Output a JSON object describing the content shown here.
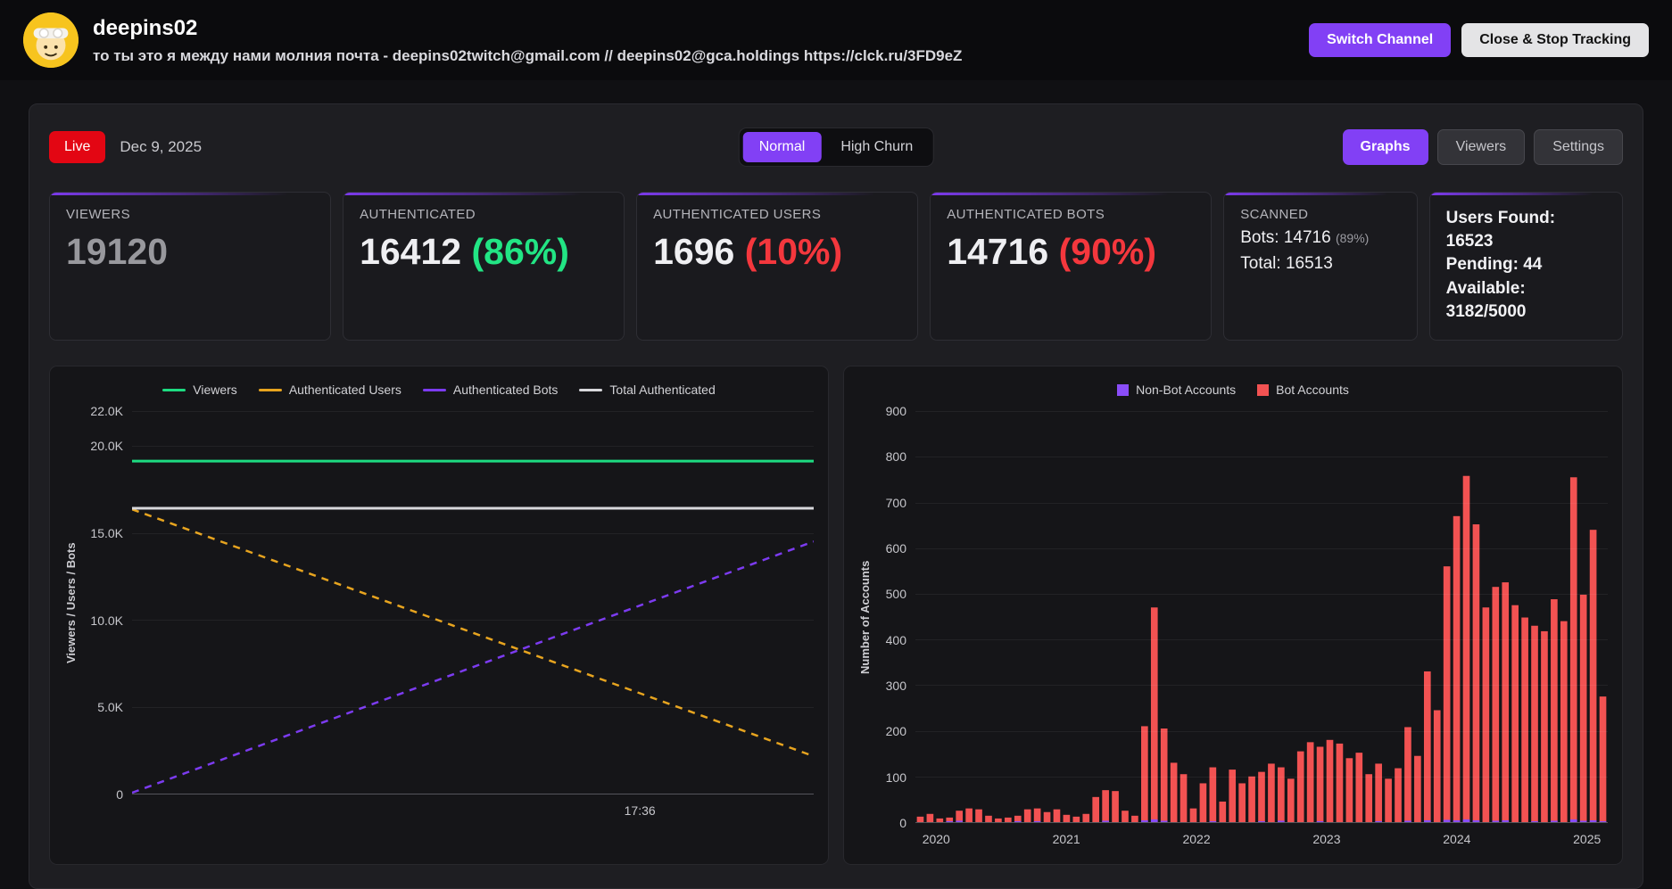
{
  "header": {
    "channel_name": "deepins02",
    "description": "то ты это я между нами молния почта - deepins02twitch@gmail.com // deepins02@gca.holdings https://clck.ru/3FD9eZ",
    "switch_channel_label": "Switch Channel",
    "close_stop_label": "Close & Stop Tracking"
  },
  "toolbar": {
    "live_label": "Live",
    "date": "Dec 9, 2025",
    "mode_normal": "Normal",
    "mode_high_churn": "High Churn",
    "tab_graphs": "Graphs",
    "tab_viewers": "Viewers",
    "tab_settings": "Settings"
  },
  "stats": {
    "viewers": {
      "label": "VIEWERS",
      "value": "19120"
    },
    "authenticated": {
      "label": "AUTHENTICATED",
      "value": "16412",
      "percent": "(86%)"
    },
    "auth_users": {
      "label": "AUTHENTICATED USERS",
      "value": "1696",
      "percent": "(10%)"
    },
    "auth_bots": {
      "label": "AUTHENTICATED BOTS",
      "value": "14716",
      "percent": "(90%)"
    },
    "scanned": {
      "label": "SCANNED",
      "bots_text": "Bots: 14716",
      "bots_percent": "(89%)",
      "total_text": "Total: 16513"
    },
    "summary": {
      "users_found": "Users Found: 16523",
      "pending": "Pending: 44",
      "available_label": "Available:",
      "available_value": "3182/5000"
    }
  },
  "colors": {
    "accent_purple": "#8240f5",
    "live_red": "#e30613",
    "green": "#22e584",
    "red": "#f4373d",
    "bar_red": "#f25252",
    "bar_purple": "#8a4df8"
  },
  "chart_data": [
    {
      "type": "line",
      "title": "",
      "xlabel": "",
      "ylabel": "Viewers / Users / Bots",
      "ylim": [
        0,
        22000
      ],
      "grid": true,
      "legend_position": "top",
      "yticks": [
        {
          "value": 0,
          "label": "0"
        },
        {
          "value": 5000,
          "label": "5.0K"
        },
        {
          "value": 10000,
          "label": "10.0K"
        },
        {
          "value": 15000,
          "label": "15.0K"
        },
        {
          "value": 20000,
          "label": "20.0K"
        },
        {
          "value": 22000,
          "label": "22.0K"
        }
      ],
      "xticks": [
        {
          "position": 0.745,
          "label": "17:36"
        }
      ],
      "series": [
        {
          "name": "Viewers",
          "color": "#1ddb81",
          "dashed": false,
          "points": [
            [
              0,
              19120
            ],
            [
              1,
              19120
            ]
          ]
        },
        {
          "name": "Authenticated Users",
          "color": "#e7a41f",
          "dashed": true,
          "points": [
            [
              0,
              16350
            ],
            [
              1,
              2150
            ]
          ]
        },
        {
          "name": "Authenticated Bots",
          "color": "#7c3bf0",
          "dashed": true,
          "points": [
            [
              0,
              50
            ],
            [
              1,
              14500
            ]
          ]
        },
        {
          "name": "Total Authenticated",
          "color": "#d8d8dc",
          "dashed": false,
          "points": [
            [
              0,
              16412
            ],
            [
              1,
              16412
            ]
          ]
        }
      ]
    },
    {
      "type": "bar",
      "title": "",
      "xlabel": "",
      "ylabel": "Number of Accounts",
      "ylim": [
        0,
        900
      ],
      "grid": true,
      "legend_position": "top",
      "yticks": [
        0,
        100,
        200,
        300,
        400,
        500,
        600,
        700,
        800,
        900
      ],
      "x_labels": [
        "2020",
        "2021",
        "2022",
        "2023",
        "2024",
        "2025"
      ],
      "series": [
        {
          "name": "Non-Bot Accounts",
          "color": "#8a4df8",
          "values": [
            0,
            0,
            0,
            2,
            3,
            0,
            0,
            0,
            0,
            0,
            2,
            0,
            2,
            0,
            0,
            0,
            0,
            0,
            0,
            3,
            0,
            0,
            0,
            4,
            6,
            3,
            0,
            0,
            0,
            0,
            2,
            0,
            0,
            0,
            0,
            2,
            0,
            3,
            0,
            0,
            0,
            2,
            0,
            0,
            0,
            0,
            0,
            2,
            0,
            0,
            3,
            0,
            4,
            0,
            5,
            4,
            6,
            4,
            0,
            3,
            4,
            0,
            0,
            2,
            0,
            3,
            0,
            6,
            3,
            4,
            2
          ]
        },
        {
          "name": "Bot Accounts",
          "color": "#f25252",
          "values": [
            12,
            18,
            8,
            10,
            25,
            30,
            28,
            14,
            8,
            10,
            14,
            28,
            30,
            22,
            28,
            16,
            12,
            18,
            55,
            70,
            68,
            25,
            14,
            210,
            470,
            205,
            130,
            105,
            30,
            85,
            120,
            45,
            115,
            85,
            100,
            110,
            128,
            120,
            95,
            155,
            175,
            165,
            180,
            172,
            140,
            152,
            105,
            128,
            95,
            118,
            208,
            145,
            330,
            245,
            560,
            670,
            758,
            652,
            470,
            515,
            525,
            475,
            448,
            430,
            418,
            488,
            440,
            755,
            498,
            640,
            275
          ]
        }
      ]
    }
  ]
}
